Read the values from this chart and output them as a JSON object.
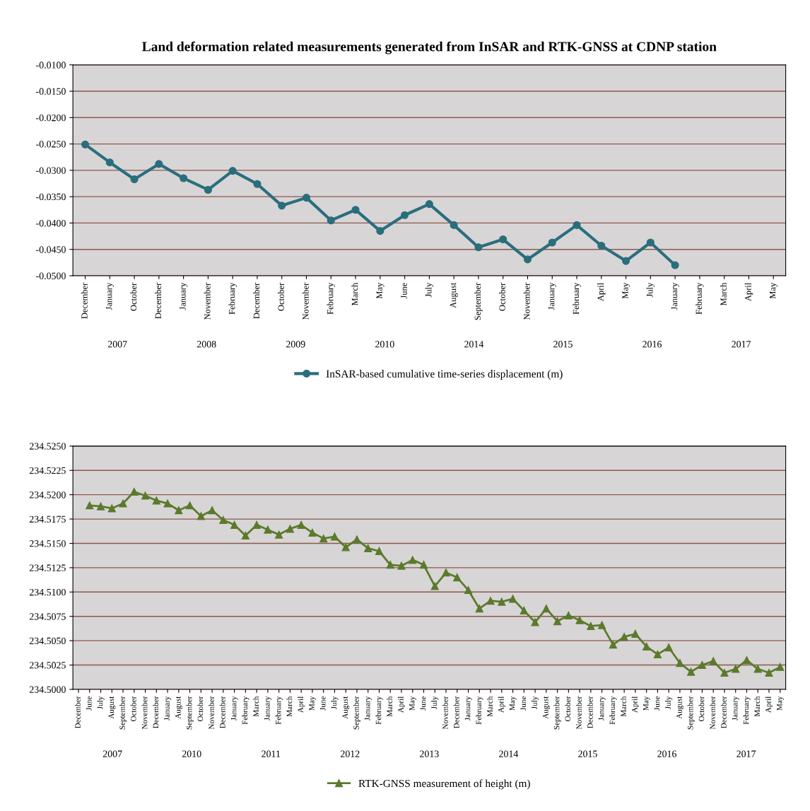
{
  "chart_data": [
    {
      "type": "line",
      "title": "Land deformation related measurements generated from InSAR and RTK-GNSS at CDNP station",
      "categories": [
        "December",
        "January",
        "October",
        "December",
        "January",
        "November",
        "February",
        "December",
        "October",
        "November",
        "February",
        "March",
        "May",
        "June",
        "July",
        "August",
        "September",
        "October",
        "November",
        "January",
        "February",
        "April",
        "May",
        "July",
        "January",
        "February",
        "March",
        "April",
        "May"
      ],
      "series": [
        {
          "name": "InSAR-based cumulative time-series displacement (m)",
          "color": "#2a6e7c",
          "values": [
            -0.0251,
            -0.0285,
            -0.0317,
            -0.0288,
            -0.0315,
            -0.0337,
            -0.0301,
            -0.0326,
            -0.0367,
            -0.0352,
            -0.0395,
            -0.0375,
            -0.0415,
            -0.0385,
            -0.0364,
            -0.0404,
            -0.0446,
            -0.0431,
            -0.0469,
            -0.0437,
            -0.0404,
            -0.0443,
            -0.0472,
            -0.0437,
            -0.048,
            null,
            null,
            null,
            null
          ]
        }
      ],
      "ylim": [
        -0.05,
        -0.01
      ],
      "yticks": [
        {
          "value": -0.01,
          "label": "-0.0100"
        },
        {
          "value": -0.015,
          "label": "-0.0150"
        },
        {
          "value": -0.02,
          "label": "-0.0200"
        },
        {
          "value": -0.025,
          "label": "-0.0250"
        },
        {
          "value": -0.03,
          "label": "-0.0300"
        },
        {
          "value": -0.035,
          "label": "-0.0350"
        },
        {
          "value": -0.04,
          "label": "-0.0400"
        },
        {
          "value": -0.045,
          "label": "-0.0450"
        },
        {
          "value": -0.05,
          "label": "-0.0500"
        }
      ],
      "annotations": [
        "2007",
        "2008",
        "2009",
        "2010",
        "2014",
        "2015",
        "2016",
        "2017"
      ],
      "grid": "y",
      "legend": "bottom",
      "marker": "circle",
      "line_style": "solid"
    },
    {
      "type": "line",
      "categories": [
        "December",
        "June",
        "July",
        "August",
        "September",
        "October",
        "November",
        "December",
        "January",
        "August",
        "September",
        "October",
        "November",
        "December",
        "January",
        "February",
        "March",
        "January",
        "February",
        "March",
        "April",
        "May",
        "June",
        "July",
        "August",
        "September",
        "January",
        "February",
        "March",
        "April",
        "May",
        "June",
        "July",
        "November",
        "December",
        "January",
        "February",
        "March",
        "April",
        "May",
        "June",
        "July",
        "August",
        "September",
        "October",
        "November",
        "December",
        "January",
        "February",
        "March",
        "April",
        "May",
        "June",
        "July",
        "August",
        "September",
        "October",
        "November",
        "December",
        "January",
        "February",
        "March",
        "April",
        "May"
      ],
      "series": [
        {
          "name": "RTK-GNSS measurement of height (m)",
          "color": "#5b7a2b",
          "values": [
            null,
            234.5189,
            234.5188,
            234.5186,
            234.5191,
            234.5203,
            234.5199,
            234.5194,
            234.5191,
            234.5184,
            234.5189,
            234.5178,
            234.5184,
            234.5174,
            234.5169,
            234.5158,
            234.5169,
            234.5164,
            234.5159,
            234.5165,
            234.5169,
            234.5161,
            234.5155,
            234.5157,
            234.5146,
            234.5154,
            234.5145,
            234.5142,
            234.5128,
            234.5127,
            234.5133,
            234.5128,
            234.5106,
            234.512,
            234.5115,
            234.5102,
            234.5083,
            234.5091,
            234.509,
            234.5093,
            234.5081,
            234.5069,
            234.5083,
            234.507,
            234.5076,
            234.5071,
            234.5065,
            234.5066,
            234.5046,
            234.5054,
            234.5057,
            234.5044,
            234.5036,
            234.5043,
            234.5027,
            234.5018,
            234.5025,
            234.5029,
            234.5017,
            234.5021,
            234.503,
            234.5021,
            234.5017,
            234.5023
          ]
        }
      ],
      "ylim": [
        234.5,
        234.525
      ],
      "yticks": [
        {
          "value": 234.5,
          "label": "234.5000"
        },
        {
          "value": 234.5025,
          "label": "234.5025"
        },
        {
          "value": 234.505,
          "label": "234.5050"
        },
        {
          "value": 234.5075,
          "label": "234.5075"
        },
        {
          "value": 234.51,
          "label": "234.5100"
        },
        {
          "value": 234.5125,
          "label": "234.5125"
        },
        {
          "value": 234.515,
          "label": "234.5150"
        },
        {
          "value": 234.5175,
          "label": "234.5175"
        },
        {
          "value": 234.52,
          "label": "234.5200"
        },
        {
          "value": 234.5225,
          "label": "234.5225"
        },
        {
          "value": 234.525,
          "label": "234.5250"
        }
      ],
      "annotations": [
        "2007",
        "2010",
        "2011",
        "2012",
        "2013",
        "2014",
        "2015",
        "2016",
        "2017"
      ],
      "grid": "y",
      "legend": "bottom",
      "marker": "triangle",
      "line_style": "solid"
    }
  ]
}
